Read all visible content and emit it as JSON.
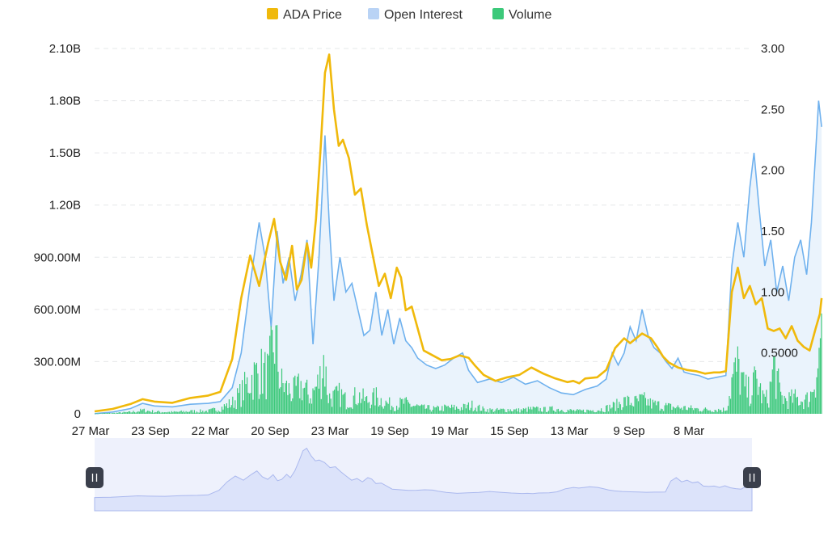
{
  "colors": {
    "price": "#F0B90B",
    "open_interest": "#6FB1EE",
    "open_interest_fill": "#EAF3FC",
    "volume": "#3CC97A",
    "grid": "#E6E8EA",
    "navigator_fill": "#DCE3FA",
    "navigator_line": "#AAB8EE",
    "handle": "#3A3F4B"
  },
  "chart_data": {
    "type": "line",
    "legend": {
      "position": "top-center",
      "items": [
        {
          "key": "price",
          "label": "ADA Price",
          "icon": "square-swatch"
        },
        {
          "key": "open_interest",
          "label": "Open Interest",
          "icon": "square-swatch"
        },
        {
          "key": "volume",
          "label": "Volume",
          "icon": "square-swatch"
        }
      ]
    },
    "grid": true,
    "x_ticks": [
      "27 Mar",
      "23 Sep",
      "22 Mar",
      "20 Sep",
      "23 Mar",
      "19 Sep",
      "19 Mar",
      "15 Sep",
      "13 Mar",
      "9 Sep",
      "8 Mar"
    ],
    "x_range_ticks": [
      0,
      12
    ],
    "y_left": {
      "min": 0,
      "max": 2100000000,
      "ticks": [
        {
          "value": 0,
          "label": "0"
        },
        {
          "value": 300000000,
          "label": "300.00M"
        },
        {
          "value": 600000000,
          "label": "600.00M"
        },
        {
          "value": 900000000,
          "label": "900.00M"
        },
        {
          "value": 1200000000,
          "label": "1.20B"
        },
        {
          "value": 1500000000,
          "label": "1.50B"
        },
        {
          "value": 1800000000,
          "label": "1.80B"
        },
        {
          "value": 2100000000,
          "label": "2.10B"
        }
      ]
    },
    "y_right": {
      "min": 0,
      "max": 3.0,
      "ticks": [
        {
          "value": 0.5,
          "label": "0.5000"
        },
        {
          "value": 1.0,
          "label": "1.00"
        },
        {
          "value": 1.5,
          "label": "1.50"
        },
        {
          "value": 2.0,
          "label": "2.00"
        },
        {
          "value": 2.5,
          "label": "2.50"
        },
        {
          "value": 3.0,
          "label": "3.00"
        }
      ]
    },
    "series": [
      {
        "key": "price",
        "name": "ADA Price",
        "axis": "right",
        "kind": "line",
        "points": [
          [
            0.0,
            0.02
          ],
          [
            0.3,
            0.04
          ],
          [
            0.6,
            0.08
          ],
          [
            0.8,
            0.12
          ],
          [
            1.0,
            0.1
          ],
          [
            1.3,
            0.09
          ],
          [
            1.6,
            0.13
          ],
          [
            1.9,
            0.15
          ],
          [
            2.1,
            0.18
          ],
          [
            2.3,
            0.45
          ],
          [
            2.45,
            0.95
          ],
          [
            2.6,
            1.3
          ],
          [
            2.75,
            1.05
          ],
          [
            2.9,
            1.4
          ],
          [
            3.0,
            1.6
          ],
          [
            3.1,
            1.25
          ],
          [
            3.2,
            1.1
          ],
          [
            3.3,
            1.38
          ],
          [
            3.38,
            1.02
          ],
          [
            3.46,
            1.1
          ],
          [
            3.55,
            1.4
          ],
          [
            3.62,
            1.2
          ],
          [
            3.7,
            1.6
          ],
          [
            3.78,
            2.2
          ],
          [
            3.85,
            2.8
          ],
          [
            3.92,
            2.95
          ],
          [
            4.0,
            2.5
          ],
          [
            4.08,
            2.2
          ],
          [
            4.15,
            2.25
          ],
          [
            4.25,
            2.1
          ],
          [
            4.35,
            1.8
          ],
          [
            4.45,
            1.85
          ],
          [
            4.55,
            1.55
          ],
          [
            4.65,
            1.3
          ],
          [
            4.75,
            1.05
          ],
          [
            4.85,
            1.15
          ],
          [
            4.95,
            0.95
          ],
          [
            5.05,
            1.2
          ],
          [
            5.12,
            1.12
          ],
          [
            5.2,
            0.85
          ],
          [
            5.3,
            0.88
          ],
          [
            5.4,
            0.7
          ],
          [
            5.5,
            0.52
          ],
          [
            5.65,
            0.48
          ],
          [
            5.8,
            0.44
          ],
          [
            5.95,
            0.45
          ],
          [
            6.1,
            0.48
          ],
          [
            6.25,
            0.46
          ],
          [
            6.35,
            0.4
          ],
          [
            6.5,
            0.32
          ],
          [
            6.7,
            0.27
          ],
          [
            6.9,
            0.3
          ],
          [
            7.1,
            0.32
          ],
          [
            7.3,
            0.38
          ],
          [
            7.5,
            0.33
          ],
          [
            7.7,
            0.29
          ],
          [
            7.9,
            0.26
          ],
          [
            8.0,
            0.27
          ],
          [
            8.1,
            0.25
          ],
          [
            8.2,
            0.29
          ],
          [
            8.4,
            0.3
          ],
          [
            8.55,
            0.36
          ],
          [
            8.7,
            0.54
          ],
          [
            8.85,
            0.62
          ],
          [
            8.95,
            0.58
          ],
          [
            9.05,
            0.62
          ],
          [
            9.15,
            0.66
          ],
          [
            9.3,
            0.62
          ],
          [
            9.4,
            0.55
          ],
          [
            9.5,
            0.47
          ],
          [
            9.6,
            0.42
          ],
          [
            9.75,
            0.38
          ],
          [
            9.9,
            0.36
          ],
          [
            10.05,
            0.35
          ],
          [
            10.2,
            0.33
          ],
          [
            10.35,
            0.34
          ],
          [
            10.45,
            0.34
          ],
          [
            10.55,
            0.35
          ],
          [
            10.65,
            1.0
          ],
          [
            10.75,
            1.2
          ],
          [
            10.85,
            0.95
          ],
          [
            10.95,
            1.05
          ],
          [
            11.05,
            0.9
          ],
          [
            11.15,
            0.95
          ],
          [
            11.25,
            0.7
          ],
          [
            11.35,
            0.68
          ],
          [
            11.45,
            0.7
          ],
          [
            11.55,
            0.62
          ],
          [
            11.65,
            0.72
          ],
          [
            11.75,
            0.6
          ],
          [
            11.85,
            0.55
          ],
          [
            11.95,
            0.52
          ],
          [
            12.05,
            0.7
          ],
          [
            12.12,
            0.82
          ],
          [
            12.15,
            0.95
          ]
        ]
      },
      {
        "key": "open_interest",
        "name": "Open Interest",
        "axis": "left",
        "kind": "area",
        "points": [
          [
            0.0,
            1000000
          ],
          [
            0.3,
            10000000
          ],
          [
            0.6,
            30000000
          ],
          [
            0.8,
            60000000
          ],
          [
            1.0,
            45000000
          ],
          [
            1.3,
            40000000
          ],
          [
            1.6,
            55000000
          ],
          [
            1.9,
            60000000
          ],
          [
            2.1,
            70000000
          ],
          [
            2.3,
            150000000
          ],
          [
            2.45,
            350000000
          ],
          [
            2.6,
            750000000
          ],
          [
            2.75,
            1100000000
          ],
          [
            2.85,
            900000000
          ],
          [
            2.95,
            500000000
          ],
          [
            3.05,
            1050000000
          ],
          [
            3.15,
            750000000
          ],
          [
            3.25,
            900000000
          ],
          [
            3.35,
            650000000
          ],
          [
            3.45,
            800000000
          ],
          [
            3.55,
            1000000000
          ],
          [
            3.65,
            400000000
          ],
          [
            3.75,
            900000000
          ],
          [
            3.85,
            1600000000
          ],
          [
            3.92,
            1100000000
          ],
          [
            4.0,
            650000000
          ],
          [
            4.1,
            900000000
          ],
          [
            4.2,
            700000000
          ],
          [
            4.3,
            750000000
          ],
          [
            4.4,
            600000000
          ],
          [
            4.5,
            450000000
          ],
          [
            4.6,
            480000000
          ],
          [
            4.7,
            700000000
          ],
          [
            4.8,
            450000000
          ],
          [
            4.9,
            600000000
          ],
          [
            5.0,
            400000000
          ],
          [
            5.1,
            550000000
          ],
          [
            5.2,
            420000000
          ],
          [
            5.3,
            380000000
          ],
          [
            5.4,
            320000000
          ],
          [
            5.55,
            280000000
          ],
          [
            5.7,
            260000000
          ],
          [
            5.85,
            280000000
          ],
          [
            6.0,
            320000000
          ],
          [
            6.15,
            350000000
          ],
          [
            6.25,
            250000000
          ],
          [
            6.4,
            180000000
          ],
          [
            6.6,
            200000000
          ],
          [
            6.8,
            180000000
          ],
          [
            7.0,
            210000000
          ],
          [
            7.2,
            170000000
          ],
          [
            7.4,
            190000000
          ],
          [
            7.6,
            150000000
          ],
          [
            7.8,
            120000000
          ],
          [
            8.0,
            110000000
          ],
          [
            8.2,
            140000000
          ],
          [
            8.4,
            160000000
          ],
          [
            8.55,
            200000000
          ],
          [
            8.65,
            350000000
          ],
          [
            8.75,
            280000000
          ],
          [
            8.85,
            350000000
          ],
          [
            8.95,
            500000000
          ],
          [
            9.05,
            420000000
          ],
          [
            9.15,
            600000000
          ],
          [
            9.25,
            450000000
          ],
          [
            9.35,
            380000000
          ],
          [
            9.45,
            350000000
          ],
          [
            9.55,
            300000000
          ],
          [
            9.65,
            260000000
          ],
          [
            9.75,
            320000000
          ],
          [
            9.85,
            240000000
          ],
          [
            9.95,
            230000000
          ],
          [
            10.1,
            220000000
          ],
          [
            10.25,
            200000000
          ],
          [
            10.4,
            210000000
          ],
          [
            10.55,
            220000000
          ],
          [
            10.65,
            850000000
          ],
          [
            10.75,
            1100000000
          ],
          [
            10.85,
            900000000
          ],
          [
            10.95,
            1300000000
          ],
          [
            11.02,
            1500000000
          ],
          [
            11.1,
            1200000000
          ],
          [
            11.2,
            850000000
          ],
          [
            11.3,
            1000000000
          ],
          [
            11.4,
            700000000
          ],
          [
            11.5,
            850000000
          ],
          [
            11.6,
            650000000
          ],
          [
            11.7,
            900000000
          ],
          [
            11.8,
            1000000000
          ],
          [
            11.9,
            800000000
          ],
          [
            11.98,
            1100000000
          ],
          [
            12.05,
            1500000000
          ],
          [
            12.1,
            1800000000
          ],
          [
            12.15,
            1650000000
          ]
        ]
      },
      {
        "key": "volume",
        "name": "Volume",
        "axis": "left",
        "kind": "bars",
        "points": [
          [
            0.0,
            2000000
          ],
          [
            0.3,
            5000000
          ],
          [
            0.6,
            12000000
          ],
          [
            0.8,
            25000000
          ],
          [
            1.0,
            15000000
          ],
          [
            1.3,
            12000000
          ],
          [
            1.6,
            18000000
          ],
          [
            1.9,
            20000000
          ],
          [
            2.1,
            40000000
          ],
          [
            2.3,
            80000000
          ],
          [
            2.45,
            150000000
          ],
          [
            2.6,
            250000000
          ],
          [
            2.75,
            300000000
          ],
          [
            2.9,
            280000000
          ],
          [
            3.0,
            550000000
          ],
          [
            3.1,
            220000000
          ],
          [
            3.2,
            180000000
          ],
          [
            3.3,
            150000000
          ],
          [
            3.45,
            200000000
          ],
          [
            3.6,
            120000000
          ],
          [
            3.75,
            230000000
          ],
          [
            3.82,
            400000000
          ],
          [
            3.9,
            120000000
          ],
          [
            4.0,
            120000000
          ],
          [
            4.1,
            140000000
          ],
          [
            4.2,
            90000000
          ],
          [
            4.3,
            110000000
          ],
          [
            4.4,
            130000000
          ],
          [
            4.55,
            90000000
          ],
          [
            4.7,
            120000000
          ],
          [
            4.85,
            80000000
          ],
          [
            5.0,
            60000000
          ],
          [
            5.15,
            80000000
          ],
          [
            5.3,
            60000000
          ],
          [
            5.5,
            40000000
          ],
          [
            5.7,
            35000000
          ],
          [
            5.9,
            45000000
          ],
          [
            6.1,
            40000000
          ],
          [
            6.3,
            60000000
          ],
          [
            6.5,
            30000000
          ],
          [
            6.7,
            25000000
          ],
          [
            6.9,
            30000000
          ],
          [
            7.1,
            25000000
          ],
          [
            7.3,
            35000000
          ],
          [
            7.5,
            30000000
          ],
          [
            7.7,
            35000000
          ],
          [
            7.9,
            25000000
          ],
          [
            8.1,
            20000000
          ],
          [
            8.3,
            25000000
          ],
          [
            8.5,
            35000000
          ],
          [
            8.7,
            60000000
          ],
          [
            8.85,
            90000000
          ],
          [
            9.0,
            80000000
          ],
          [
            9.15,
            100000000
          ],
          [
            9.3,
            70000000
          ],
          [
            9.45,
            60000000
          ],
          [
            9.6,
            50000000
          ],
          [
            9.75,
            45000000
          ],
          [
            9.9,
            40000000
          ],
          [
            10.05,
            35000000
          ],
          [
            10.2,
            30000000
          ],
          [
            10.4,
            30000000
          ],
          [
            10.55,
            30000000
          ],
          [
            10.65,
            250000000
          ],
          [
            10.75,
            330000000
          ],
          [
            10.85,
            180000000
          ],
          [
            10.95,
            150000000
          ],
          [
            11.05,
            250000000
          ],
          [
            11.15,
            120000000
          ],
          [
            11.25,
            100000000
          ],
          [
            11.35,
            350000000
          ],
          [
            11.45,
            130000000
          ],
          [
            11.55,
            100000000
          ],
          [
            11.7,
            110000000
          ],
          [
            11.85,
            90000000
          ],
          [
            11.95,
            120000000
          ],
          [
            12.05,
            300000000
          ],
          [
            12.1,
            400000000
          ],
          [
            12.15,
            750000000
          ]
        ]
      }
    ]
  },
  "navigator": {
    "label": "range-navigator",
    "handles": [
      "left-range-handle",
      "right-range-handle"
    ]
  }
}
